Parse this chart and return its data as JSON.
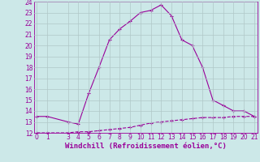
{
  "xlabel": "Windchill (Refroidissement éolien,°C)",
  "line1_x": [
    0,
    1,
    3,
    4,
    5,
    6,
    7,
    8,
    9,
    10,
    11,
    12,
    13,
    14,
    15,
    16,
    17,
    18,
    19,
    20,
    21
  ],
  "line1_y": [
    13.5,
    13.5,
    13.0,
    12.8,
    15.6,
    18.0,
    20.5,
    21.5,
    22.2,
    23.0,
    23.2,
    23.7,
    22.7,
    20.5,
    20.0,
    18.0,
    15.0,
    14.5,
    14.0,
    14.0,
    13.5
  ],
  "line2_x": [
    0,
    1,
    3,
    4,
    5,
    6,
    7,
    8,
    9,
    10,
    11,
    12,
    13,
    14,
    15,
    16,
    17,
    18,
    19,
    20,
    21
  ],
  "line2_y": [
    12.0,
    12.0,
    12.0,
    12.1,
    12.1,
    12.2,
    12.3,
    12.4,
    12.5,
    12.7,
    12.9,
    13.0,
    13.1,
    13.2,
    13.3,
    13.4,
    13.4,
    13.4,
    13.5,
    13.5,
    13.5
  ],
  "color": "#990099",
  "bg_color": "#cce8e8",
  "grid_color": "#b0c8c8",
  "ylim": [
    12,
    24
  ],
  "xlim": [
    -0.3,
    21.3
  ],
  "yticks": [
    12,
    13,
    14,
    15,
    16,
    17,
    18,
    19,
    20,
    21,
    22,
    23,
    24
  ],
  "xticks": [
    0,
    1,
    3,
    4,
    5,
    6,
    7,
    8,
    9,
    10,
    11,
    12,
    13,
    14,
    15,
    16,
    17,
    18,
    19,
    20,
    21
  ],
  "tick_fontsize": 5.5,
  "xlabel_fontsize": 6.5
}
